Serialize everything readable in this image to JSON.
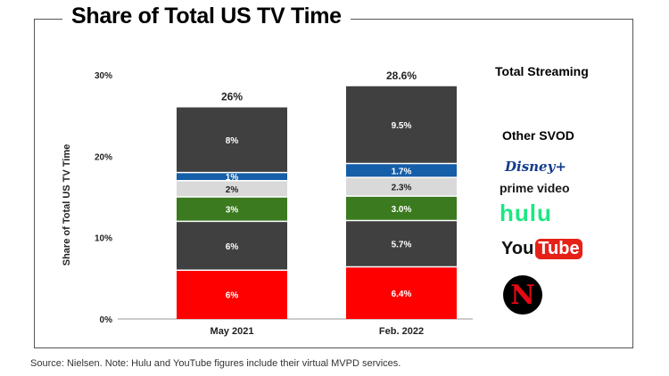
{
  "chart_data": {
    "type": "bar",
    "stacked": true,
    "title": "Share of Total US TV Time",
    "ylabel": "Share of Total US TV Time",
    "xlabel": "",
    "ylim": [
      0,
      30
    ],
    "yticks": [
      "0%",
      "10%",
      "20%",
      "30%"
    ],
    "categories": [
      "May 2021",
      "Feb. 2022"
    ],
    "totals": [
      "26%",
      "28.6%"
    ],
    "series": [
      {
        "name": "Netflix",
        "color": "#ff0000",
        "values": [
          6,
          6.4
        ],
        "labels": [
          "6%",
          "6.4%"
        ]
      },
      {
        "name": "YouTube",
        "color": "#404040",
        "values": [
          6,
          5.7
        ],
        "labels": [
          "6%",
          "5.7%"
        ]
      },
      {
        "name": "hulu",
        "color": "#3b7a1f",
        "values": [
          3,
          3.0
        ],
        "labels": [
          "3%",
          "3.0%"
        ]
      },
      {
        "name": "prime video",
        "color": "#d9d9d9",
        "values": [
          2,
          2.3
        ],
        "labels": [
          "2%",
          "2.3%"
        ]
      },
      {
        "name": "Disney+",
        "color": "#155ea8",
        "values": [
          1,
          1.7
        ],
        "labels": [
          "1%",
          "1.7%"
        ]
      },
      {
        "name": "Other SVOD",
        "color": "#404040",
        "values": [
          8,
          9.5
        ],
        "labels": [
          "8%",
          "9.5%"
        ]
      }
    ],
    "legend": {
      "total_label": "Total Streaming",
      "other_svod": "Other SVOD",
      "disney": "Disney+",
      "prime": "prime video",
      "hulu": "hulu",
      "youtube_you": "You",
      "youtube_tube": "Tube",
      "netflix": "N"
    },
    "legend_placement": "right",
    "grid": false
  },
  "source_note": "Source: Nielsen. Note: Hulu and YouTube figures include their virtual MVPD services."
}
